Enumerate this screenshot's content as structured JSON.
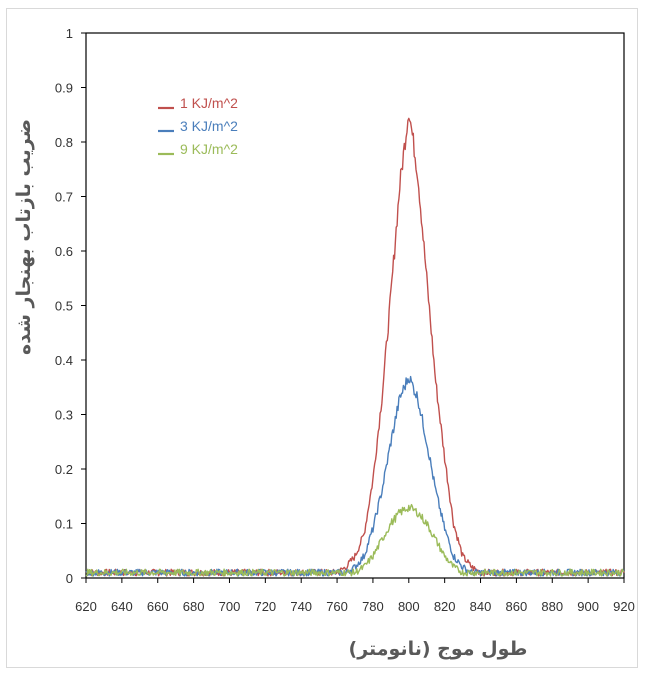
{
  "chart_data": {
    "type": "line",
    "xlabel": "طول موج (نانومتر)",
    "ylabel": "ضریب بازتاب بهنجار شده",
    "xlim": [
      620,
      920
    ],
    "ylim": [
      0,
      1
    ],
    "x_ticks": [
      620,
      640,
      660,
      680,
      700,
      720,
      740,
      760,
      780,
      800,
      820,
      840,
      860,
      880,
      900,
      920
    ],
    "y_ticks": [
      0,
      0.1,
      0.2,
      0.3,
      0.4,
      0.5,
      0.6,
      0.7,
      0.8,
      0.9,
      1
    ],
    "y_tick_labels": [
      "0",
      "0.1",
      "0.2",
      "0.3",
      "0.4",
      "0.5",
      "0.6",
      "0.7",
      "0.8",
      "0.9",
      "1"
    ],
    "grid": false,
    "legend_position": "top-left",
    "series": [
      {
        "name": "1 KJ/m^2",
        "color": "#c0504d",
        "x": [
          620,
          760,
          765,
          770,
          775,
          780,
          785,
          790,
          795,
          800,
          805,
          810,
          815,
          820,
          825,
          830,
          835,
          840,
          920
        ],
        "values": [
          0.01,
          0.01,
          0.02,
          0.04,
          0.08,
          0.18,
          0.33,
          0.52,
          0.72,
          0.86,
          0.74,
          0.55,
          0.36,
          0.22,
          0.1,
          0.04,
          0.02,
          0.01,
          0.01
        ]
      },
      {
        "name": "3 KJ/m^2",
        "color": "#4a7ebb",
        "x": [
          620,
          765,
          770,
          775,
          780,
          785,
          790,
          795,
          800,
          805,
          810,
          815,
          820,
          825,
          830,
          835,
          840,
          920
        ],
        "values": [
          0.01,
          0.01,
          0.02,
          0.04,
          0.09,
          0.16,
          0.25,
          0.33,
          0.37,
          0.33,
          0.25,
          0.16,
          0.09,
          0.04,
          0.02,
          0.01,
          0.01,
          0.01
        ]
      },
      {
        "name": "9 KJ/m^2",
        "color": "#9bbb59",
        "x": [
          620,
          770,
          775,
          780,
          785,
          790,
          795,
          800,
          805,
          810,
          815,
          820,
          825,
          830,
          835,
          920
        ],
        "values": [
          0.01,
          0.01,
          0.02,
          0.04,
          0.07,
          0.1,
          0.12,
          0.13,
          0.12,
          0.1,
          0.07,
          0.04,
          0.02,
          0.01,
          0.01,
          0.01
        ]
      }
    ]
  }
}
